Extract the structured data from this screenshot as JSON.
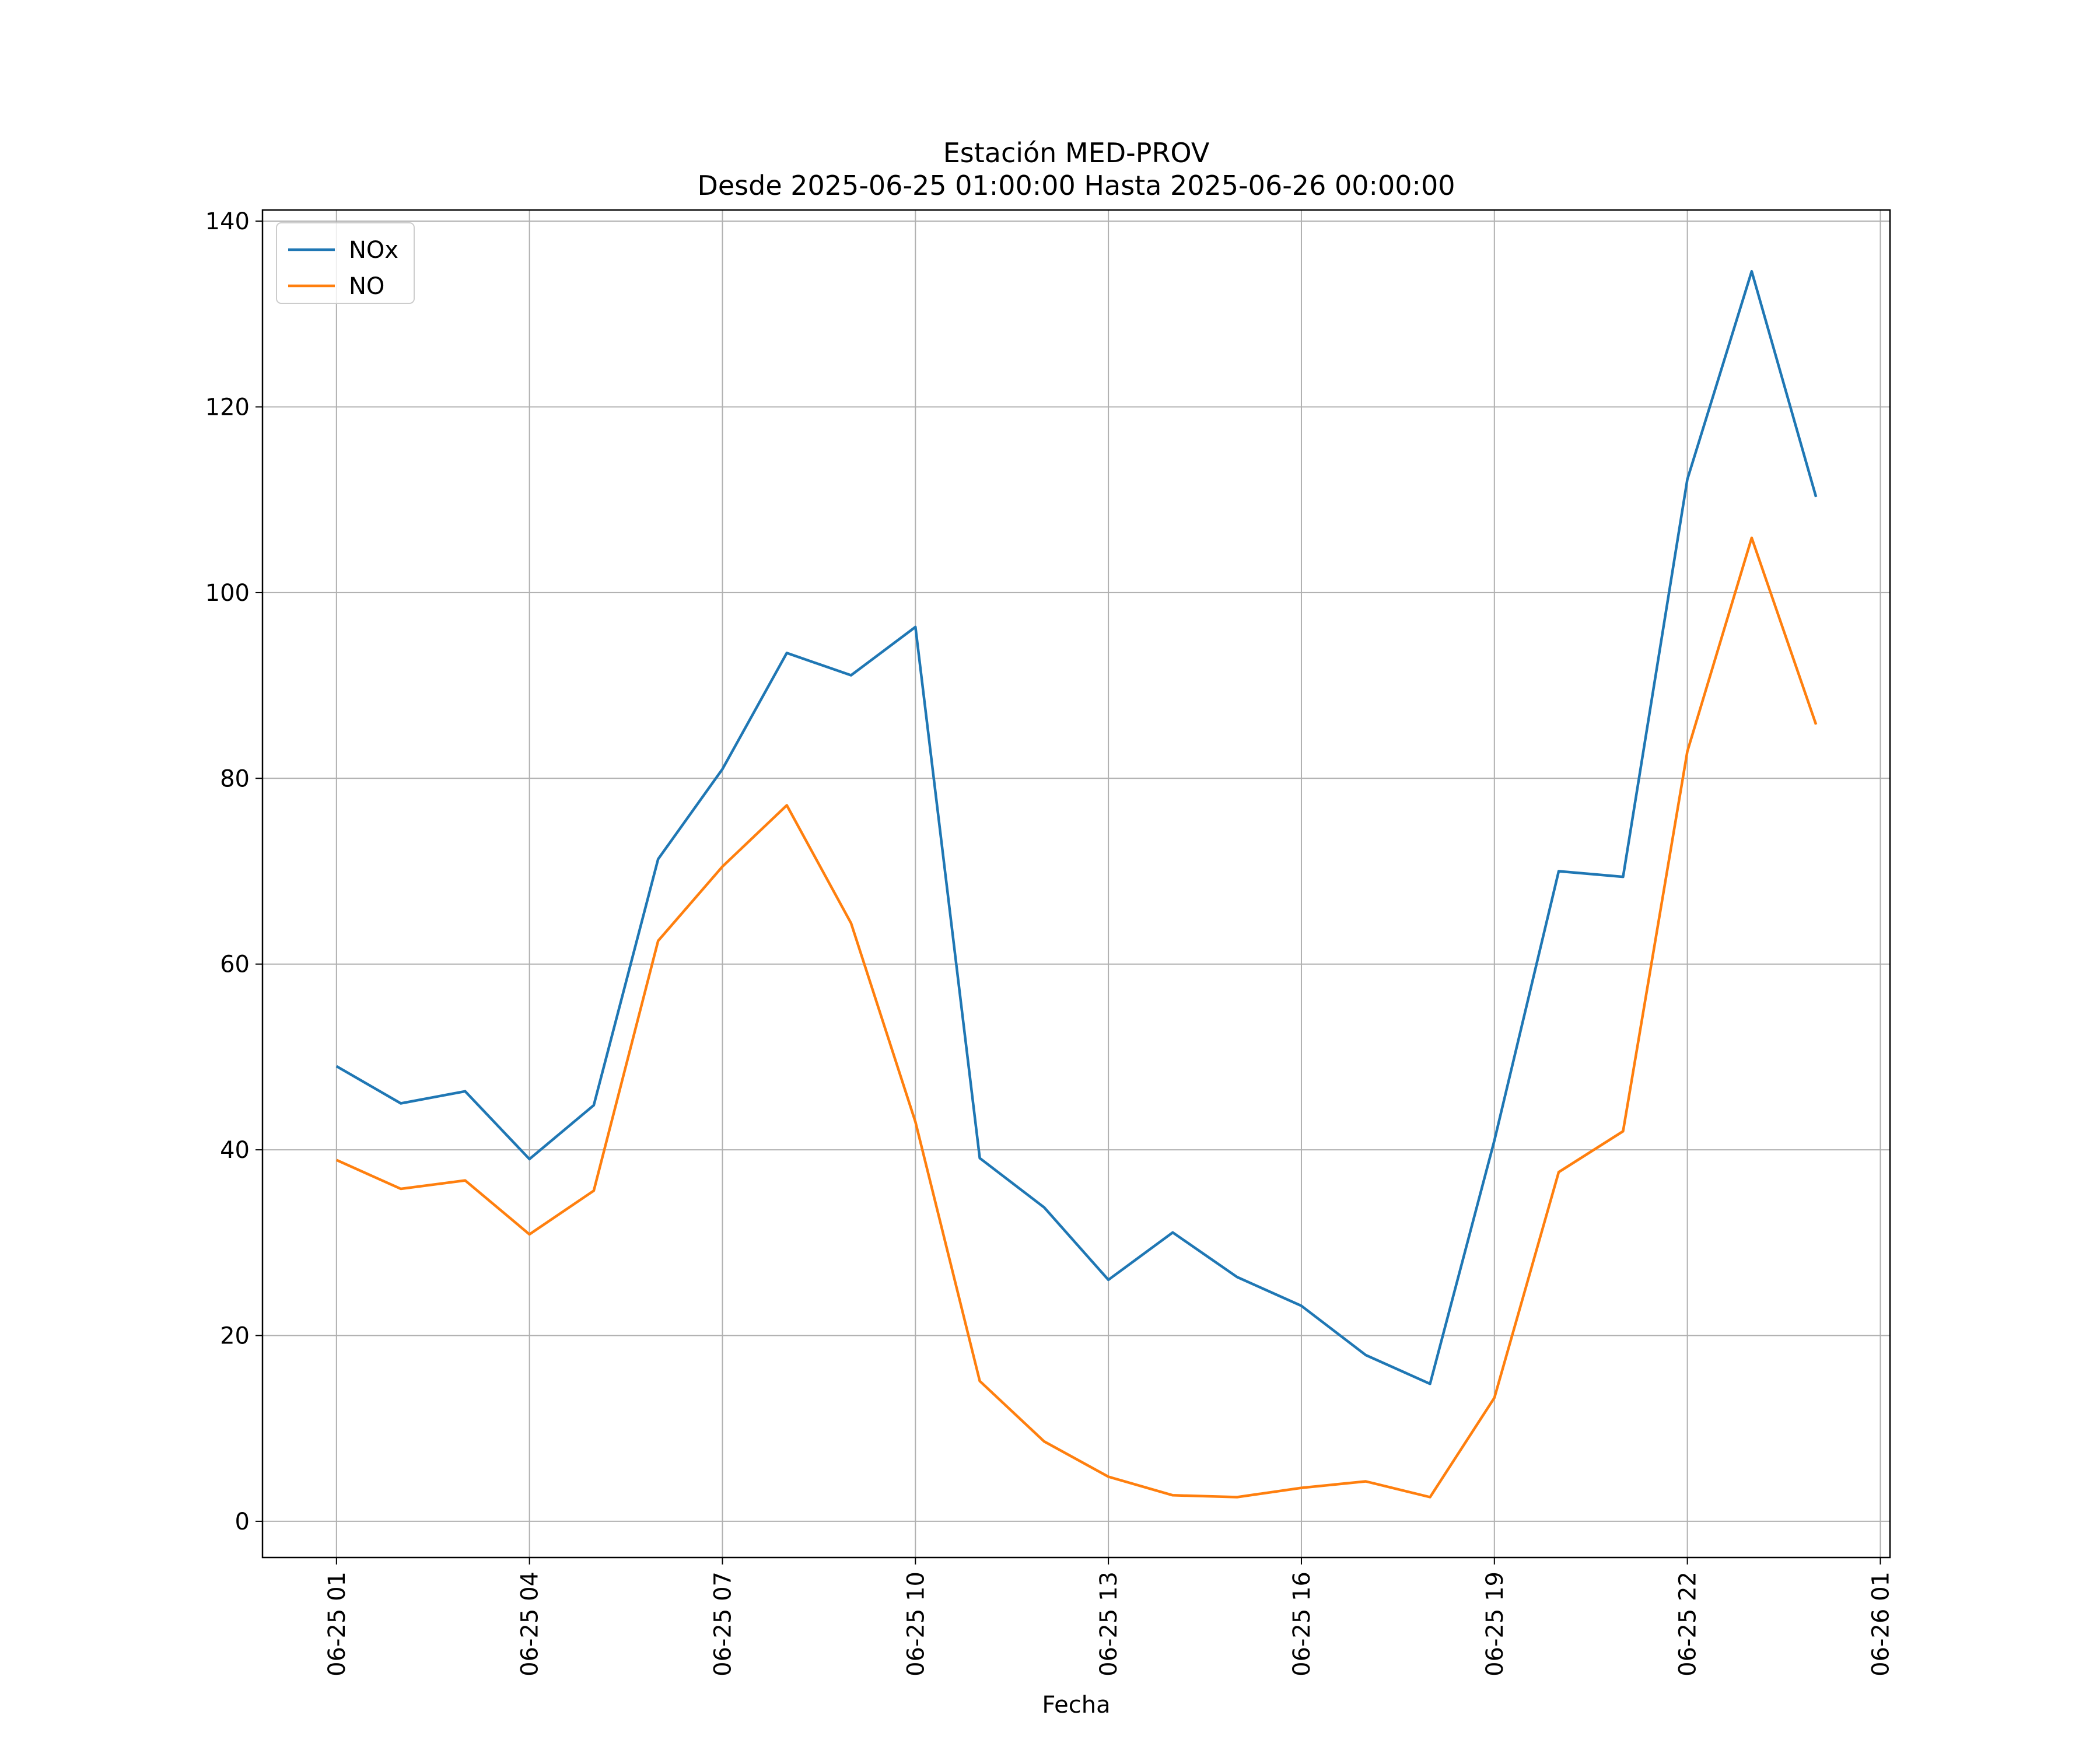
{
  "chart_data": {
    "type": "line",
    "title": "Estación MED-PROV",
    "subtitle": "Desde 2025-06-25 01:00:00 Hasta 2025-06-26 00:00:00",
    "xlabel": "Fecha",
    "ylabel": "",
    "x": [
      "2025-06-25 01:00",
      "2025-06-25 02:00",
      "2025-06-25 03:00",
      "2025-06-25 04:00",
      "2025-06-25 05:00",
      "2025-06-25 06:00",
      "2025-06-25 07:00",
      "2025-06-25 08:00",
      "2025-06-25 09:00",
      "2025-06-25 10:00",
      "2025-06-25 11:00",
      "2025-06-25 12:00",
      "2025-06-25 13:00",
      "2025-06-25 14:00",
      "2025-06-25 15:00",
      "2025-06-25 16:00",
      "2025-06-25 17:00",
      "2025-06-25 18:00",
      "2025-06-25 19:00",
      "2025-06-25 20:00",
      "2025-06-25 21:00",
      "2025-06-25 22:00",
      "2025-06-25 23:00",
      "2025-06-26 00:00"
    ],
    "series": [
      {
        "name": "NOx",
        "color": "#1f77b4",
        "values": [
          49.0,
          45.0,
          46.3,
          39.0,
          44.8,
          71.3,
          81.0,
          93.5,
          91.1,
          96.3,
          39.1,
          33.8,
          26.0,
          31.1,
          26.3,
          23.2,
          17.9,
          14.8,
          41.0,
          70.0,
          69.4,
          112.2,
          134.6,
          110.3
        ]
      },
      {
        "name": "NO",
        "color": "#ff7f0e",
        "values": [
          38.9,
          35.8,
          36.7,
          30.9,
          35.6,
          62.5,
          70.5,
          77.1,
          64.4,
          43.0,
          15.1,
          8.6,
          4.8,
          2.8,
          2.6,
          3.6,
          4.3,
          2.6,
          13.3,
          37.6,
          42.0,
          82.9,
          105.9,
          85.8
        ]
      }
    ],
    "xticks": [
      "06-25 01",
      "06-25 04",
      "06-25 07",
      "06-25 10",
      "06-25 13",
      "06-25 16",
      "06-25 19",
      "06-25 22",
      "06-26 01"
    ],
    "yticks": [
      "0",
      "20",
      "40",
      "60",
      "80",
      "100",
      "120",
      "140"
    ],
    "xlim": [
      "2025-06-24 23:51",
      "2025-06-26 01:09"
    ],
    "ylim": [
      -3.9,
      141.2
    ],
    "grid": true,
    "legend_position": "top-left"
  }
}
